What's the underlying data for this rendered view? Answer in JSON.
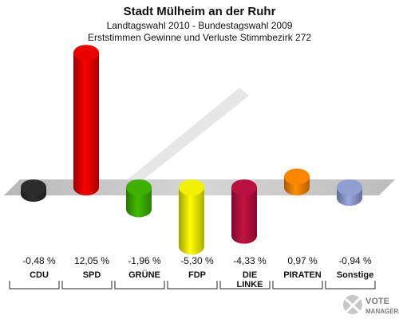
{
  "chart_data": {
    "type": "bar",
    "title": "Stadt Mülheim an der Ruhr",
    "subtitle_lines": [
      "Landtagswahl 2010 - Bundestagswahl 2009",
      "Erststimmen Gewinne und Verluste Stimmbezirk 272"
    ],
    "categories": [
      [
        "CDU"
      ],
      [
        "SPD"
      ],
      [
        "GRÜNE"
      ],
      [
        "FDP"
      ],
      [
        "DIE",
        "LINKE"
      ],
      [
        "PIRATEN"
      ],
      [
        "Sonstige"
      ]
    ],
    "values": [
      -0.48,
      12.05,
      -1.96,
      -5.3,
      -4.33,
      0.97,
      -0.94
    ],
    "value_labels": [
      "-0,48 %",
      "12,05 %",
      "-1,96 %",
      "-5,30 %",
      "-4,33 %",
      "0,97 %",
      "-0,94 %"
    ],
    "colors": [
      "#2a2a2a",
      "#e00000",
      "#3aa800",
      "#e6e600",
      "#b0103c",
      "#f08000",
      "#8a96c8"
    ],
    "xlabel": "",
    "ylabel": ""
  },
  "logo": {
    "line1": "VOTE",
    "line2": "MANAGER"
  }
}
